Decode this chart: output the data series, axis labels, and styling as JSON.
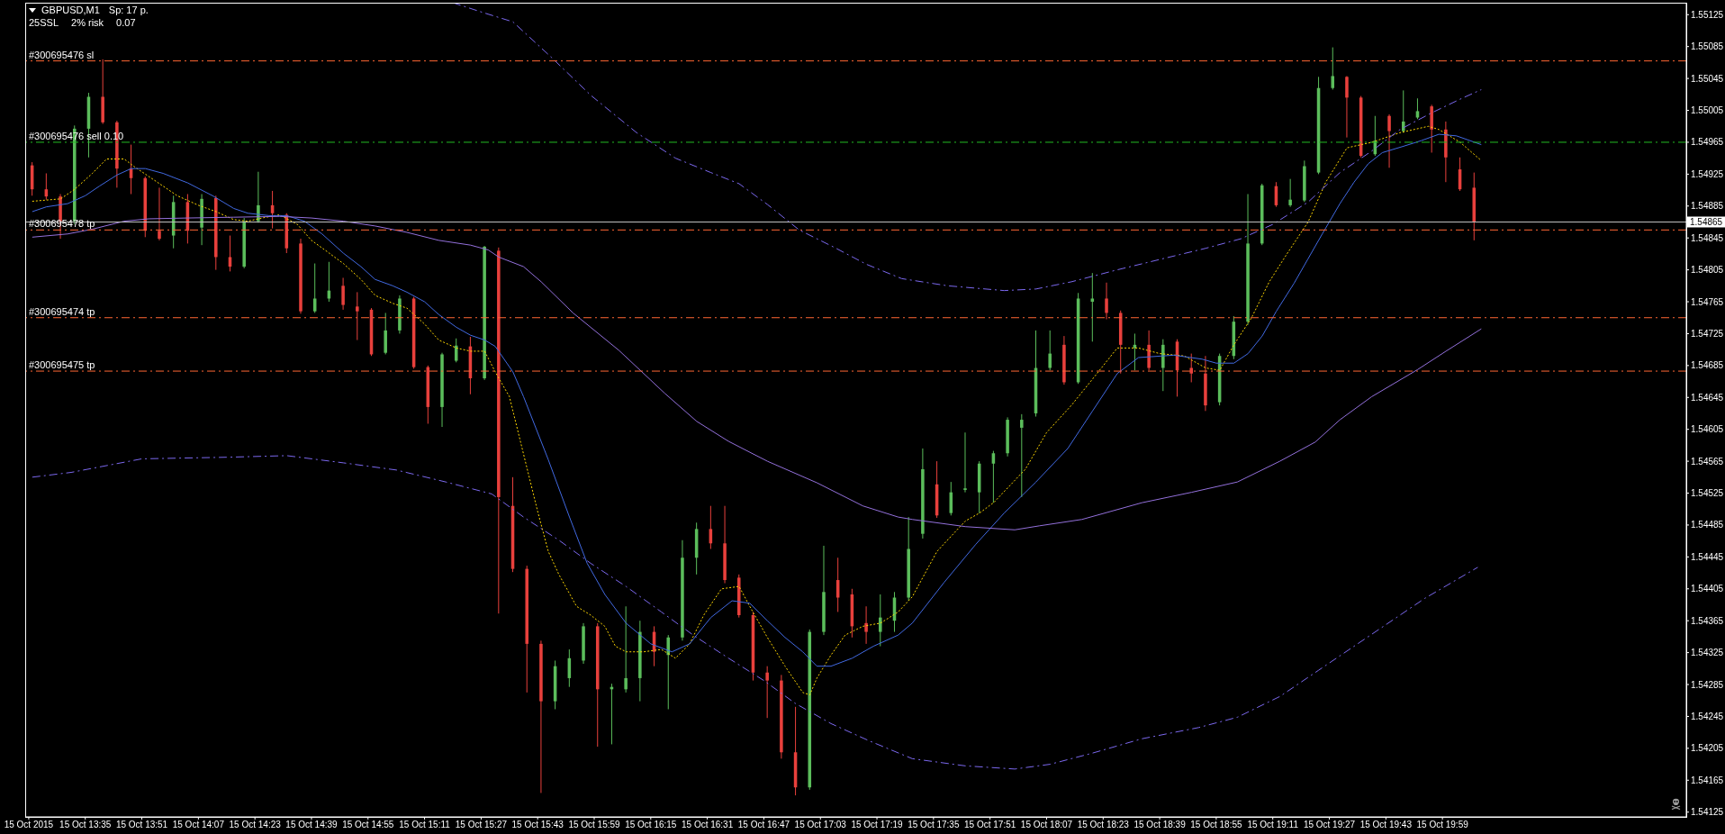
{
  "chart_data": {
    "type": "candlestick",
    "title": "GBPUSD,M1",
    "annotations": [
      "Sp: 17 p.",
      "25SSL",
      "2% risk",
      "0.07"
    ],
    "x": [
      "2015-10-15T13:20",
      "2015-10-15T13:24",
      "2015-10-15T13:28",
      "2015-10-15T13:32",
      "2015-10-15T13:36",
      "2015-10-15T13:40",
      "2015-10-15T13:44",
      "2015-10-15T13:48",
      "2015-10-15T13:52",
      "2015-10-15T13:56",
      "2015-10-15T14:00",
      "2015-10-15T14:04",
      "2015-10-15T14:08",
      "2015-10-15T14:12",
      "2015-10-15T14:16",
      "2015-10-15T14:20",
      "2015-10-15T14:24",
      "2015-10-15T14:28",
      "2015-10-15T14:32",
      "2015-10-15T14:36",
      "2015-10-15T14:40",
      "2015-10-15T14:44",
      "2015-10-15T14:48",
      "2015-10-15T14:52",
      "2015-10-15T14:56",
      "2015-10-15T15:00",
      "2015-10-15T15:04",
      "2015-10-15T15:08",
      "2015-10-15T15:12",
      "2015-10-15T15:16",
      "2015-10-15T15:20",
      "2015-10-15T15:24",
      "2015-10-15T15:28",
      "2015-10-15T15:32",
      "2015-10-15T15:36",
      "2015-10-15T15:40",
      "2015-10-15T15:44",
      "2015-10-15T15:48",
      "2015-10-15T15:52",
      "2015-10-15T15:56",
      "2015-10-15T16:00",
      "2015-10-15T16:04",
      "2015-10-15T16:08",
      "2015-10-15T16:12",
      "2015-10-15T16:16",
      "2015-10-15T16:20",
      "2015-10-15T16:24",
      "2015-10-15T16:28",
      "2015-10-15T16:32",
      "2015-10-15T16:36",
      "2015-10-15T16:40",
      "2015-10-15T16:44",
      "2015-10-15T16:48",
      "2015-10-15T16:52",
      "2015-10-15T16:56",
      "2015-10-15T17:00",
      "2015-10-15T17:04",
      "2015-10-15T17:08",
      "2015-10-15T17:12",
      "2015-10-15T17:16",
      "2015-10-15T17:20",
      "2015-10-15T17:24",
      "2015-10-15T17:28",
      "2015-10-15T17:32",
      "2015-10-15T17:36",
      "2015-10-15T17:40",
      "2015-10-15T17:44",
      "2015-10-15T17:48",
      "2015-10-15T17:52",
      "2015-10-15T17:56",
      "2015-10-15T18:00",
      "2015-10-15T18:04",
      "2015-10-15T18:08",
      "2015-10-15T18:12",
      "2015-10-15T18:16",
      "2015-10-15T18:20",
      "2015-10-15T18:24",
      "2015-10-15T18:28",
      "2015-10-15T18:32",
      "2015-10-15T18:36",
      "2015-10-15T18:40",
      "2015-10-15T18:44",
      "2015-10-15T18:48",
      "2015-10-15T18:52",
      "2015-10-15T18:56",
      "2015-10-15T19:00",
      "2015-10-15T19:04",
      "2015-10-15T19:08",
      "2015-10-15T19:12",
      "2015-10-15T19:16",
      "2015-10-15T19:20",
      "2015-10-15T19:24",
      "2015-10-15T19:28",
      "2015-10-15T19:32",
      "2015-10-15T19:36",
      "2015-10-15T19:40",
      "2015-10-15T19:44",
      "2015-10-15T19:48",
      "2015-10-15T19:52",
      "2015-10-15T19:56",
      "2015-10-15T20:00",
      "2015-10-15T20:04",
      "2015-10-15T20:08"
    ],
    "ohlc": [
      [
        1.54936,
        1.5494,
        1.54898,
        1.54906
      ],
      [
        1.54906,
        1.54926,
        1.54893,
        1.54897
      ],
      [
        1.54897,
        1.549,
        1.54844,
        1.54866
      ],
      [
        1.54866,
        1.54986,
        1.54862,
        1.54982
      ],
      [
        1.54982,
        1.55027,
        1.54946,
        1.55022
      ],
      [
        1.55022,
        1.55069,
        1.54988,
        1.5499
      ],
      [
        1.5499,
        1.54992,
        1.54908,
        1.54932
      ],
      [
        1.54932,
        1.54962,
        1.549,
        1.5492
      ],
      [
        1.5492,
        1.54922,
        1.54846,
        1.54854
      ],
      [
        1.54854,
        1.54908,
        1.54842,
        1.54844
      ],
      [
        1.54848,
        1.54898,
        1.54832,
        1.5489
      ],
      [
        1.5489,
        1.549,
        1.54838,
        1.54854
      ],
      [
        1.54858,
        1.549,
        1.54836,
        1.54894
      ],
      [
        1.54895,
        1.54898,
        1.54805,
        1.54821
      ],
      [
        1.54821,
        1.54848,
        1.54803,
        1.54809
      ],
      [
        1.54809,
        1.5487,
        1.54807,
        1.54866
      ],
      [
        1.54866,
        1.54928,
        1.54864,
        1.54886
      ],
      [
        1.54886,
        1.54904,
        1.54857,
        1.54876
      ],
      [
        1.54874,
        1.54876,
        1.54826,
        1.54832
      ],
      [
        1.54838,
        1.54844,
        1.5475,
        1.54753
      ],
      [
        1.54753,
        1.54813,
        1.54751,
        1.54769
      ],
      [
        1.54769,
        1.54815,
        1.54765,
        1.54779
      ],
      [
        1.54785,
        1.54795,
        1.54755,
        1.54761
      ],
      [
        1.54759,
        1.54777,
        1.54717,
        1.54753
      ],
      [
        1.54755,
        1.54757,
        1.54697,
        1.54699
      ],
      [
        1.54701,
        1.54751,
        1.54699,
        1.54729
      ],
      [
        1.54729,
        1.54773,
        1.54725,
        1.54769
      ],
      [
        1.54769,
        1.54771,
        1.54681,
        1.54683
      ],
      [
        1.54683,
        1.54685,
        1.54612,
        1.54633
      ],
      [
        1.54633,
        1.54701,
        1.54608,
        1.54699
      ],
      [
        1.54691,
        1.54719,
        1.54689,
        1.5471
      ],
      [
        1.54709,
        1.54721,
        1.54649,
        1.54669
      ],
      [
        1.54669,
        1.54835,
        1.54667,
        1.54834
      ],
      [
        1.54829,
        1.54833,
        1.54374,
        1.5452
      ],
      [
        1.54509,
        1.54545,
        1.54426,
        1.5443
      ],
      [
        1.5443,
        1.54434,
        1.54275,
        1.54336
      ],
      [
        1.54336,
        1.5434,
        1.54149,
        1.54264
      ],
      [
        1.54264,
        1.54315,
        1.54254,
        1.54308
      ],
      [
        1.54293,
        1.54329,
        1.54282,
        1.54318
      ],
      [
        1.54315,
        1.54362,
        1.54311,
        1.54358
      ],
      [
        1.54358,
        1.54362,
        1.54207,
        1.54279
      ],
      [
        1.54279,
        1.54286,
        1.5421,
        1.54282
      ],
      [
        1.54279,
        1.54383,
        1.54275,
        1.54293
      ],
      [
        1.54293,
        1.54365,
        1.54264,
        1.54351
      ],
      [
        1.54351,
        1.54358,
        1.54308,
        1.54326
      ],
      [
        1.54322,
        1.54347,
        1.54254,
        1.54344
      ],
      [
        1.54344,
        1.54466,
        1.5434,
        1.54444
      ],
      [
        1.54444,
        1.54488,
        1.54423,
        1.5448
      ],
      [
        1.5448,
        1.54509,
        1.54455,
        1.54462
      ],
      [
        1.54462,
        1.54509,
        1.54412,
        1.54416
      ],
      [
        1.54419,
        1.54423,
        1.54369,
        1.54372
      ],
      [
        1.54372,
        1.54376,
        1.5429,
        1.543
      ],
      [
        1.543,
        1.54308,
        1.54243,
        1.5429
      ],
      [
        1.5429,
        1.54297,
        1.54192,
        1.542
      ],
      [
        1.542,
        1.54257,
        1.54146,
        1.54156
      ],
      [
        1.54156,
        1.54354,
        1.54153,
        1.54351
      ],
      [
        1.54351,
        1.54459,
        1.54347,
        1.54401
      ],
      [
        1.54416,
        1.54444,
        1.54376,
        1.54394
      ],
      [
        1.54398,
        1.54405,
        1.54344,
        1.54358
      ],
      [
        1.54362,
        1.54383,
        1.54336,
        1.54351
      ],
      [
        1.54351,
        1.54398,
        1.54333,
        1.54369
      ],
      [
        1.54365,
        1.54401,
        1.54351,
        1.54394
      ],
      [
        1.54394,
        1.54495,
        1.5439,
        1.54455
      ],
      [
        1.54474,
        1.54581,
        1.54468,
        1.54555
      ],
      [
        1.54536,
        1.54565,
        1.54494,
        1.54497
      ],
      [
        1.545,
        1.54539,
        1.54497,
        1.54526
      ],
      [
        1.54529,
        1.54601,
        1.54526,
        1.54531
      ],
      [
        1.54526,
        1.54565,
        1.545,
        1.54562
      ],
      [
        1.54562,
        1.54578,
        1.54513,
        1.54575
      ],
      [
        1.54575,
        1.5462,
        1.54571,
        1.54617
      ],
      [
        1.54607,
        1.54624,
        1.5452,
        1.54617
      ],
      [
        1.54625,
        1.54729,
        1.54621,
        1.54682
      ],
      [
        1.54682,
        1.54729,
        1.54679,
        1.547
      ],
      [
        1.54711,
        1.54722,
        1.54661,
        1.54664
      ],
      [
        1.54664,
        1.54776,
        1.54662,
        1.54769
      ],
      [
        1.54765,
        1.54801,
        1.54715,
        1.54769
      ],
      [
        1.54769,
        1.54789,
        1.54743,
        1.54751
      ],
      [
        1.54751,
        1.54754,
        1.54675,
        1.54711
      ],
      [
        1.54707,
        1.54725,
        1.54679,
        1.54711
      ],
      [
        1.54711,
        1.54729,
        1.54679,
        1.54682
      ],
      [
        1.54682,
        1.54718,
        1.54653,
        1.54711
      ],
      [
        1.54715,
        1.54718,
        1.54646,
        1.54679
      ],
      [
        1.54682,
        1.547,
        1.54664,
        1.54675
      ],
      [
        1.54675,
        1.54697,
        1.54628,
        1.54635
      ],
      [
        1.54639,
        1.547,
        1.54635,
        1.54697
      ],
      [
        1.54697,
        1.54747,
        1.54693,
        1.5474
      ],
      [
        1.5474,
        1.549,
        1.54736,
        1.54838
      ],
      [
        1.54838,
        1.54913,
        1.54836,
        1.54911
      ],
      [
        1.5491,
        1.54915,
        1.54884,
        1.54886
      ],
      [
        1.54886,
        1.54919,
        1.54884,
        1.54893
      ],
      [
        1.54892,
        1.54942,
        1.5489,
        1.54935
      ],
      [
        1.54927,
        1.55047,
        1.54925,
        1.55033
      ],
      [
        1.55033,
        1.55084,
        1.55031,
        1.55048
      ],
      [
        1.55047,
        1.55048,
        1.54971,
        1.55021
      ],
      [
        1.55021,
        1.55023,
        1.54946,
        1.54948
      ],
      [
        1.5495,
        1.54998,
        1.54948,
        1.54967
      ],
      [
        1.54998,
        1.55,
        1.54933,
        1.54979
      ],
      [
        1.54979,
        1.5503,
        1.54977,
        1.54991
      ],
      [
        1.54996,
        1.5502,
        1.54994,
        1.55004
      ],
      [
        1.5501,
        1.55012,
        1.54952,
        1.54981
      ],
      [
        1.54981,
        1.54991,
        1.54915,
        1.54946
      ],
      [
        1.54931,
        1.54946,
        1.54904,
        1.54906
      ],
      [
        1.54908,
        1.54927,
        1.54842,
        1.54865
      ]
    ],
    "colors": [
      "#e8403c",
      "#e8403c",
      "#e8403c",
      "#5bbd5b",
      "#5bbd5b",
      "#e8403c",
      "#e8403c",
      "#e8403c",
      "#e8403c",
      "#e8403c",
      "#5bbd5b",
      "#e8403c",
      "#5bbd5b",
      "#e8403c",
      "#e8403c",
      "#5bbd5b",
      "#5bbd5b",
      "#e8403c",
      "#e8403c",
      "#e8403c",
      "#5bbd5b",
      "#5bbd5b",
      "#e8403c",
      "#e8403c",
      "#e8403c",
      "#5bbd5b",
      "#5bbd5b",
      "#e8403c",
      "#e8403c",
      "#5bbd5b",
      "#5bbd5b",
      "#e8403c",
      "#5bbd5b",
      "#e8403c",
      "#e8403c",
      "#e8403c",
      "#e8403c",
      "#5bbd5b",
      "#5bbd5b",
      "#5bbd5b",
      "#e8403c",
      "#5bbd5b",
      "#5bbd5b",
      "#5bbd5b",
      "#e8403c",
      "#5bbd5b",
      "#5bbd5b",
      "#5bbd5b",
      "#e8403c",
      "#e8403c",
      "#e8403c",
      "#e8403c",
      "#e8403c",
      "#e8403c",
      "#e8403c",
      "#5bbd5b",
      "#5bbd5b",
      "#e8403c",
      "#e8403c",
      "#e8403c",
      "#5bbd5b",
      "#5bbd5b",
      "#5bbd5b",
      "#5bbd5b",
      "#e8403c",
      "#5bbd5b",
      "#5bbd5b",
      "#5bbd5b",
      "#5bbd5b",
      "#5bbd5b",
      "#5bbd5b",
      "#5bbd5b",
      "#5bbd5b",
      "#e8403c",
      "#5bbd5b",
      "#5bbd5b",
      "#e8403c",
      "#e8403c",
      "#5bbd5b",
      "#e8403c",
      "#5bbd5b",
      "#e8403c",
      "#e8403c",
      "#e8403c",
      "#5bbd5b",
      "#5bbd5b",
      "#5bbd5b",
      "#5bbd5b",
      "#e8403c",
      "#5bbd5b",
      "#5bbd5b",
      "#5bbd5b",
      "#5bbd5b",
      "#e8403c",
      "#e8403c",
      "#5bbd5b",
      "#e8403c",
      "#5bbd5b",
      "#5bbd5b",
      "#e8403c",
      "#e8403c",
      "#e8403c",
      "#e8403c"
    ],
    "series": [
      {
        "type": "line",
        "color": "#ffd700",
        "line_style": "dotted",
        "x": [
          "2015-10-15T13:20",
          "2015-10-15T13:28",
          "2015-10-15T13:32",
          "2015-10-15T13:37",
          "2015-10-15T13:41",
          "2015-10-15T13:46",
          "2015-10-15T13:49",
          "2015-10-15T13:55",
          "2015-10-15T14:01",
          "2015-10-15T14:07",
          "2015-10-15T14:12",
          "2015-10-15T14:17",
          "2015-10-15T14:21",
          "2015-10-15T14:25",
          "2015-10-15T14:30",
          "2015-10-15T14:35",
          "2015-10-15T14:39",
          "2015-10-15T14:44",
          "2015-10-15T14:48",
          "2015-10-15T14:53",
          "2015-10-15T14:57",
          "2015-10-15T15:02",
          "2015-10-15T15:06",
          "2015-10-15T15:11",
          "2015-10-15T15:15",
          "2015-10-15T15:20",
          "2015-10-15T15:24",
          "2015-10-15T15:28",
          "2015-10-15T15:31",
          "2015-10-15T15:35",
          "2015-10-15T15:39",
          "2015-10-15T15:43",
          "2015-10-15T15:46",
          "2015-10-15T15:49",
          "2015-10-15T15:54",
          "2015-10-15T15:58",
          "2015-10-15T16:02",
          "2015-10-15T16:05",
          "2015-10-15T16:08",
          "2015-10-15T16:13",
          "2015-10-15T16:18",
          "2015-10-15T16:22",
          "2015-10-15T16:26",
          "2015-10-15T16:30",
          "2015-10-15T16:35",
          "2015-10-15T16:40",
          "2015-10-15T16:43",
          "2015-10-15T16:48",
          "2015-10-15T16:53",
          "2015-10-15T16:58",
          "2015-10-15T17:00",
          "2015-10-15T17:02",
          "2015-10-15T17:06",
          "2015-10-15T17:10",
          "2015-10-15T17:15",
          "2015-10-15T17:20",
          "2015-10-15T17:25",
          "2015-10-15T17:29",
          "2015-10-15T17:36",
          "2015-10-15T17:44",
          "2015-10-15T17:48",
          "2015-10-15T17:52",
          "2015-10-15T18:01",
          "2015-10-15T18:07",
          "2015-10-15T18:14",
          "2015-10-15T18:20",
          "2015-10-15T18:27",
          "2015-10-15T18:33",
          "2015-10-15T18:39",
          "2015-10-15T18:46",
          "2015-10-15T18:52",
          "2015-10-15T18:56",
          "2015-10-15T19:00",
          "2015-10-15T19:05",
          "2015-10-15T19:10",
          "2015-10-15T19:15",
          "2015-10-15T19:21",
          "2015-10-15T19:26",
          "2015-10-15T19:32",
          "2015-10-15T19:39",
          "2015-10-15T19:47",
          "2015-10-15T19:55",
          "2015-10-15T19:58",
          "2015-10-15T20:04",
          "2015-10-15T20:10"
        ],
        "values": [
          1.54891,
          1.54894,
          1.54906,
          1.54926,
          1.54944,
          1.54944,
          1.54934,
          1.54916,
          1.54898,
          1.54886,
          1.54878,
          1.54868,
          1.54866,
          1.5487,
          1.54874,
          1.54862,
          1.54842,
          1.54826,
          1.54813,
          1.54793,
          1.54773,
          1.54763,
          1.54757,
          1.54737,
          1.54717,
          1.54707,
          1.54703,
          1.54703,
          1.54677,
          1.54646,
          1.54574,
          1.54502,
          1.54452,
          1.54423,
          1.54383,
          1.54372,
          1.54358,
          1.54333,
          1.54326,
          1.54326,
          1.54329,
          1.54318,
          1.54336,
          1.54372,
          1.54405,
          1.54408,
          1.54383,
          1.54344,
          1.54308,
          1.54275,
          1.54272,
          1.54293,
          1.54322,
          1.54347,
          1.54358,
          1.54362,
          1.54376,
          1.54395,
          1.54452,
          1.5449,
          1.545,
          1.54513,
          1.54555,
          1.54601,
          1.54635,
          1.54668,
          1.54707,
          1.54707,
          1.547,
          1.54697,
          1.54682,
          1.54679,
          1.54711,
          1.54745,
          1.5479,
          1.54825,
          1.54865,
          1.54915,
          1.54958,
          1.54965,
          1.54977,
          1.54985,
          1.54981,
          1.54965,
          1.54942
        ]
      },
      {
        "type": "line",
        "color": "#4169e1",
        "line_style": "solid",
        "x": [
          "2015-10-15T13:20",
          "2015-10-15T13:24",
          "2015-10-15T13:30",
          "2015-10-15T13:35",
          "2015-10-15T13:39",
          "2015-10-15T13:44",
          "2015-10-15T13:48",
          "2015-10-15T13:52",
          "2015-10-15T13:57",
          "2015-10-15T14:04",
          "2015-10-15T14:11",
          "2015-10-15T14:17",
          "2015-10-15T14:21",
          "2015-10-15T14:27",
          "2015-10-15T14:32",
          "2015-10-15T14:37",
          "2015-10-15T14:42",
          "2015-10-15T14:48",
          "2015-10-15T14:53",
          "2015-10-15T14:57",
          "2015-10-15T15:02",
          "2015-10-15T15:06",
          "2015-10-15T15:11",
          "2015-10-15T15:15",
          "2015-10-15T15:20",
          "2015-10-15T15:24",
          "2015-10-15T15:28",
          "2015-10-15T15:31",
          "2015-10-15T15:36",
          "2015-10-15T15:39",
          "2015-10-15T15:46",
          "2015-10-15T15:52",
          "2015-10-15T15:57",
          "2015-10-15T16:02",
          "2015-10-15T16:08",
          "2015-10-15T16:15",
          "2015-10-15T16:21",
          "2015-10-15T16:26",
          "2015-10-15T16:32",
          "2015-10-15T16:38",
          "2015-10-15T16:43",
          "2015-10-15T16:48",
          "2015-10-15T16:53",
          "2015-10-15T16:58",
          "2015-10-15T17:02",
          "2015-10-15T17:06",
          "2015-10-15T17:12",
          "2015-10-15T17:18",
          "2015-10-15T17:25",
          "2015-10-15T17:29",
          "2015-10-15T17:38",
          "2015-10-15T17:47",
          "2015-10-15T17:55",
          "2015-10-15T18:04",
          "2015-10-15T18:13",
          "2015-10-15T18:20",
          "2015-10-15T18:27",
          "2015-10-15T18:33",
          "2015-10-15T18:43",
          "2015-10-15T18:51",
          "2015-10-15T18:55",
          "2015-10-15T19:00",
          "2015-10-15T19:04",
          "2015-10-15T19:08",
          "2015-10-15T19:12",
          "2015-10-15T19:17",
          "2015-10-15T19:21",
          "2015-10-15T19:25",
          "2015-10-15T19:30",
          "2015-10-15T19:34",
          "2015-10-15T19:38",
          "2015-10-15T19:42",
          "2015-10-15T19:48",
          "2015-10-15T19:53",
          "2015-10-15T19:58",
          "2015-10-15T20:03",
          "2015-10-15T20:10"
        ],
        "values": [
          1.54878,
          1.54884,
          1.54888,
          1.54898,
          1.5491,
          1.54924,
          1.54932,
          1.54932,
          1.54926,
          1.54914,
          1.54898,
          1.54882,
          1.54876,
          1.54873,
          1.54873,
          1.54866,
          1.5485,
          1.54826,
          1.54809,
          1.54793,
          1.54785,
          1.54777,
          1.54765,
          1.54749,
          1.54733,
          1.54723,
          1.54717,
          1.54709,
          1.54677,
          1.54646,
          1.54567,
          1.54495,
          1.54437,
          1.54398,
          1.54362,
          1.54336,
          1.54326,
          1.54336,
          1.54369,
          1.5439,
          1.54387,
          1.54365,
          1.54344,
          1.54326,
          1.54308,
          1.54308,
          1.54318,
          1.54333,
          1.54347,
          1.54362,
          1.54413,
          1.54461,
          1.545,
          1.54539,
          1.54581,
          1.54628,
          1.54675,
          1.54695,
          1.54698,
          1.54693,
          1.54688,
          1.54688,
          1.547,
          1.54722,
          1.54753,
          1.54788,
          1.54819,
          1.5485,
          1.54888,
          1.54915,
          1.54938,
          1.54952,
          1.5496,
          1.54967,
          1.54975,
          1.54973,
          1.54962
        ]
      },
      {
        "type": "line",
        "color": "#9370db",
        "line_style": "solid",
        "x": [
          "2015-10-15T13:20",
          "2015-10-15T13:30",
          "2015-10-15T13:37",
          "2015-10-15T13:46",
          "2015-10-15T13:53",
          "2015-10-15T14:04",
          "2015-10-15T14:17",
          "2015-10-15T14:30",
          "2015-10-15T14:39",
          "2015-10-15T14:48",
          "2015-10-15T14:57",
          "2015-10-15T15:06",
          "2015-10-15T15:15",
          "2015-10-15T15:24",
          "2015-10-15T15:29",
          "2015-10-15T15:32",
          "2015-10-15T15:39",
          "2015-10-15T15:44",
          "2015-10-15T15:53",
          "2015-10-15T16:06",
          "2015-10-15T16:19",
          "2015-10-15T16:28",
          "2015-10-15T16:37",
          "2015-10-15T16:48",
          "2015-10-15T17:02",
          "2015-10-15T17:15",
          "2015-10-15T17:25",
          "2015-10-15T17:29",
          "2015-10-15T17:44",
          "2015-10-15T17:58",
          "2015-10-15T18:05",
          "2015-10-15T18:17",
          "2015-10-15T18:34",
          "2015-10-15T18:48",
          "2015-10-15T19:01",
          "2015-10-15T19:13",
          "2015-10-15T19:23",
          "2015-10-15T19:30",
          "2015-10-15T19:39",
          "2015-10-15T19:52",
          "2015-10-15T20:00",
          "2015-10-15T20:10"
        ],
        "values": [
          1.54846,
          1.5485,
          1.54856,
          1.54866,
          1.54869,
          1.5487,
          1.54871,
          1.54872,
          1.5487,
          1.54866,
          1.5486,
          1.54852,
          1.54842,
          1.54836,
          1.5483,
          1.54821,
          1.54809,
          1.5479,
          1.54751,
          1.54704,
          1.5465,
          1.54615,
          1.5459,
          1.54565,
          1.54538,
          1.54509,
          1.54495,
          1.54492,
          1.54483,
          1.54479,
          1.54484,
          1.54492,
          1.54513,
          1.54526,
          1.54539,
          1.54565,
          1.54589,
          1.54617,
          1.54646,
          1.5468,
          1.54703,
          1.54731
        ]
      },
      {
        "type": "line",
        "color": "#7b68ee",
        "line_style": "dashed",
        "x": [
          "2015-10-15T15:19",
          "2015-10-15T15:28",
          "2015-10-15T15:36",
          "2015-10-15T15:47",
          "2015-10-15T15:58",
          "2015-10-15T16:11",
          "2015-10-15T16:22",
          "2015-10-15T16:32",
          "2015-10-15T16:40",
          "2015-10-15T16:48",
          "2015-10-15T16:57",
          "2015-10-15T17:07",
          "2015-10-15T17:16",
          "2015-10-15T17:26",
          "2015-10-15T17:39",
          "2015-10-15T17:55",
          "2015-10-15T18:04",
          "2015-10-15T18:14",
          "2015-10-15T18:27",
          "2015-10-15T18:39",
          "2015-10-15T18:52",
          "2015-10-15T19:02",
          "2015-10-15T19:11",
          "2015-10-15T19:21",
          "2015-10-15T19:30",
          "2015-10-15T19:39",
          "2015-10-15T19:47",
          "2015-10-15T19:56",
          "2015-10-15T20:04",
          "2015-10-15T20:10"
        ],
        "values": [
          1.5514,
          1.55127,
          1.55116,
          1.55071,
          1.55024,
          1.54977,
          1.54945,
          1.54927,
          1.54913,
          1.54887,
          1.54855,
          1.54833,
          1.54812,
          1.54794,
          1.54785,
          1.54779,
          1.54781,
          1.5479,
          1.54805,
          1.54818,
          1.54832,
          1.54844,
          1.54862,
          1.5489,
          1.54927,
          1.54954,
          1.54981,
          1.55002,
          1.55019,
          1.55031
        ]
      },
      {
        "type": "line",
        "color": "#7b68ee",
        "line_style": "dashed",
        "x": [
          "2015-10-15T13:20",
          "2015-10-15T13:31",
          "2015-10-15T13:51",
          "2015-10-15T14:15",
          "2015-10-15T14:32",
          "2015-10-15T14:48",
          "2015-10-15T15:03",
          "2015-10-15T15:17",
          "2015-10-15T15:30",
          "2015-10-15T15:39",
          "2015-10-15T15:49",
          "2015-10-15T15:58",
          "2015-10-15T16:08",
          "2015-10-15T16:18",
          "2015-10-15T16:27",
          "2015-10-15T16:37",
          "2015-10-15T16:47",
          "2015-10-15T16:56",
          "2015-10-15T17:06",
          "2015-10-15T17:17",
          "2015-10-15T17:29",
          "2015-10-15T17:44",
          "2015-10-15T17:58",
          "2015-10-15T18:08",
          "2015-10-15T18:20",
          "2015-10-15T18:34",
          "2015-10-15T18:50",
          "2015-10-15T19:01",
          "2015-10-15T19:13",
          "2015-10-15T19:24",
          "2015-10-15T19:39",
          "2015-10-15T19:54",
          "2015-10-15T20:09"
        ],
        "values": [
          1.54545,
          1.54551,
          1.54568,
          1.5457,
          1.54572,
          1.54563,
          1.54554,
          1.54539,
          1.54524,
          1.54495,
          1.54466,
          1.54437,
          1.54408,
          1.54376,
          1.54347,
          1.54318,
          1.5429,
          1.54261,
          1.54236,
          1.54214,
          1.54192,
          1.54183,
          1.54179,
          1.54185,
          1.54199,
          1.54217,
          1.54231,
          1.54244,
          1.5427,
          1.54303,
          1.54348,
          1.54393,
          1.54432
        ]
      }
    ],
    "xlim": [
      "2015-10-15T13:18",
      "2015-10-15T21:08"
    ],
    "xticks": [
      {
        "value": "2015-10-15T13:19",
        "label": "15 Oct 2015"
      },
      {
        "value": "2015-10-15T13:35",
        "label": "15 Oct 13:35"
      },
      {
        "value": "2015-10-15T13:51",
        "label": "15 Oct 13:51"
      },
      {
        "value": "2015-10-15T14:07",
        "label": "15 Oct 14:07"
      },
      {
        "value": "2015-10-15T14:23",
        "label": "15 Oct 14:23"
      },
      {
        "value": "2015-10-15T14:39",
        "label": "15 Oct 14:39"
      },
      {
        "value": "2015-10-15T14:55",
        "label": "15 Oct 14:55"
      },
      {
        "value": "2015-10-15T15:11",
        "label": "15 Oct 15:11"
      },
      {
        "value": "2015-10-15T15:27",
        "label": "15 Oct 15:27"
      },
      {
        "value": "2015-10-15T15:43",
        "label": "15 Oct 15:43"
      },
      {
        "value": "2015-10-15T15:59",
        "label": "15 Oct 15:59"
      },
      {
        "value": "2015-10-15T16:15",
        "label": "15 Oct 16:15"
      },
      {
        "value": "2015-10-15T16:31",
        "label": "15 Oct 16:31"
      },
      {
        "value": "2015-10-15T16:47",
        "label": "15 Oct 16:47"
      },
      {
        "value": "2015-10-15T17:03",
        "label": "15 Oct 17:03"
      },
      {
        "value": "2015-10-15T17:19",
        "label": "15 Oct 17:19"
      },
      {
        "value": "2015-10-15T17:35",
        "label": "15 Oct 17:35"
      },
      {
        "value": "2015-10-15T17:51",
        "label": "15 Oct 17:51"
      },
      {
        "value": "2015-10-15T18:07",
        "label": "15 Oct 18:07"
      },
      {
        "value": "2015-10-15T18:23",
        "label": "15 Oct 18:23"
      },
      {
        "value": "2015-10-15T18:39",
        "label": "15 Oct 18:39"
      },
      {
        "value": "2015-10-15T18:55",
        "label": "15 Oct 18:55"
      },
      {
        "value": "2015-10-15T19:11",
        "label": "15 Oct 19:11"
      },
      {
        "value": "2015-10-15T19:27",
        "label": "15 Oct 19:27"
      },
      {
        "value": "2015-10-15T19:43",
        "label": "15 Oct 19:43"
      },
      {
        "value": "2015-10-15T19:59",
        "label": "15 Oct 19:59"
      }
    ],
    "ylim": [
      1.54119,
      1.5514
    ],
    "yticks": [
      1.54125,
      1.54165,
      1.54205,
      1.54245,
      1.54285,
      1.54325,
      1.54365,
      1.54405,
      1.54445,
      1.54485,
      1.54525,
      1.54565,
      1.54605,
      1.54645,
      1.54685,
      1.54725,
      1.54765,
      1.54805,
      1.54845,
      1.54885,
      1.54925,
      1.54965,
      1.55005,
      1.55045,
      1.55085,
      1.55125
    ],
    "ref_lines": [
      {
        "axis": "y",
        "value": 1.55067,
        "label": "#300695476 sl",
        "color": "#ff6633",
        "line_style": "dashed"
      },
      {
        "axis": "y",
        "value": 1.54965,
        "label": "#300695476 sell 0.10",
        "color": "#22bb22",
        "line_style": "dashed"
      },
      {
        "axis": "y",
        "value": 1.54865,
        "label": "1.54865",
        "color": "#c0c0c0",
        "line_style": "solid"
      },
      {
        "axis": "y",
        "value": 1.54855,
        "label": "#300695478 tp",
        "color": "#ff6633",
        "line_style": "dashed"
      },
      {
        "axis": "y",
        "value": 1.54745,
        "label": "#300695474 tp",
        "color": "#ff6633",
        "line_style": "dashed"
      },
      {
        "axis": "y",
        "value": 1.54678,
        "label": "#300695475 tp",
        "color": "#ff6633",
        "line_style": "dashed"
      }
    ]
  }
}
